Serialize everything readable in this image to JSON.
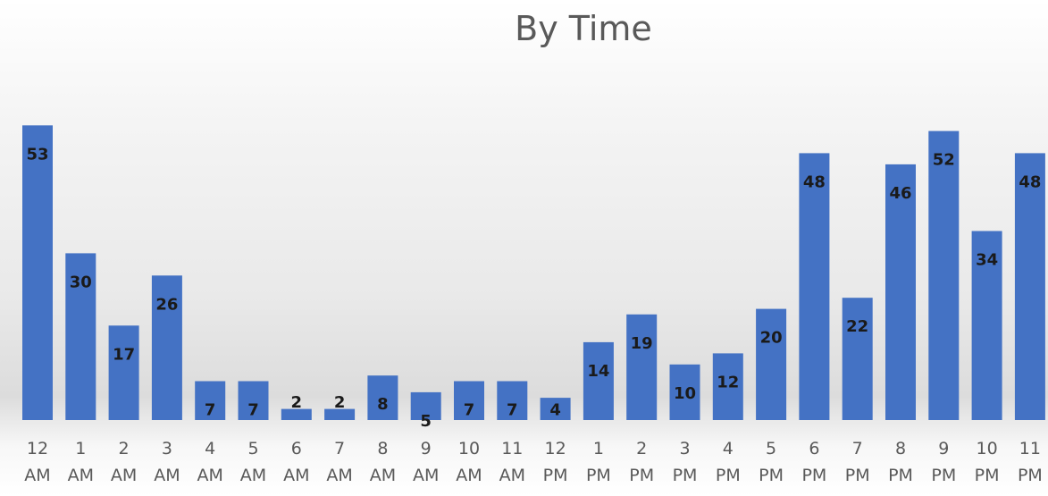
{
  "chart_data": {
    "type": "bar",
    "title": "By Time",
    "categories": [
      [
        "12",
        "AM"
      ],
      [
        "1",
        "AM"
      ],
      [
        "2",
        "AM"
      ],
      [
        "3",
        "AM"
      ],
      [
        "4",
        "AM"
      ],
      [
        "5",
        "AM"
      ],
      [
        "6",
        "AM"
      ],
      [
        "7",
        "AM"
      ],
      [
        "8",
        "AM"
      ],
      [
        "9",
        "AM"
      ],
      [
        "10",
        "AM"
      ],
      [
        "11",
        "AM"
      ],
      [
        "12",
        "PM"
      ],
      [
        "1",
        "PM"
      ],
      [
        "2",
        "PM"
      ],
      [
        "3",
        "PM"
      ],
      [
        "4",
        "PM"
      ],
      [
        "5",
        "PM"
      ],
      [
        "6",
        "PM"
      ],
      [
        "7",
        "PM"
      ],
      [
        "8",
        "PM"
      ],
      [
        "9",
        "PM"
      ],
      [
        "10",
        "PM"
      ],
      [
        "11",
        "PM"
      ]
    ],
    "values": [
      53,
      30,
      17,
      26,
      7,
      7,
      2,
      2,
      8,
      5,
      7,
      7,
      4,
      14,
      19,
      10,
      12,
      20,
      48,
      22,
      46,
      52,
      34,
      48
    ],
    "data_labels": true,
    "bar_color": "#4472C4",
    "grid": false,
    "legend": "none",
    "xlabel": "",
    "ylabel": ""
  }
}
